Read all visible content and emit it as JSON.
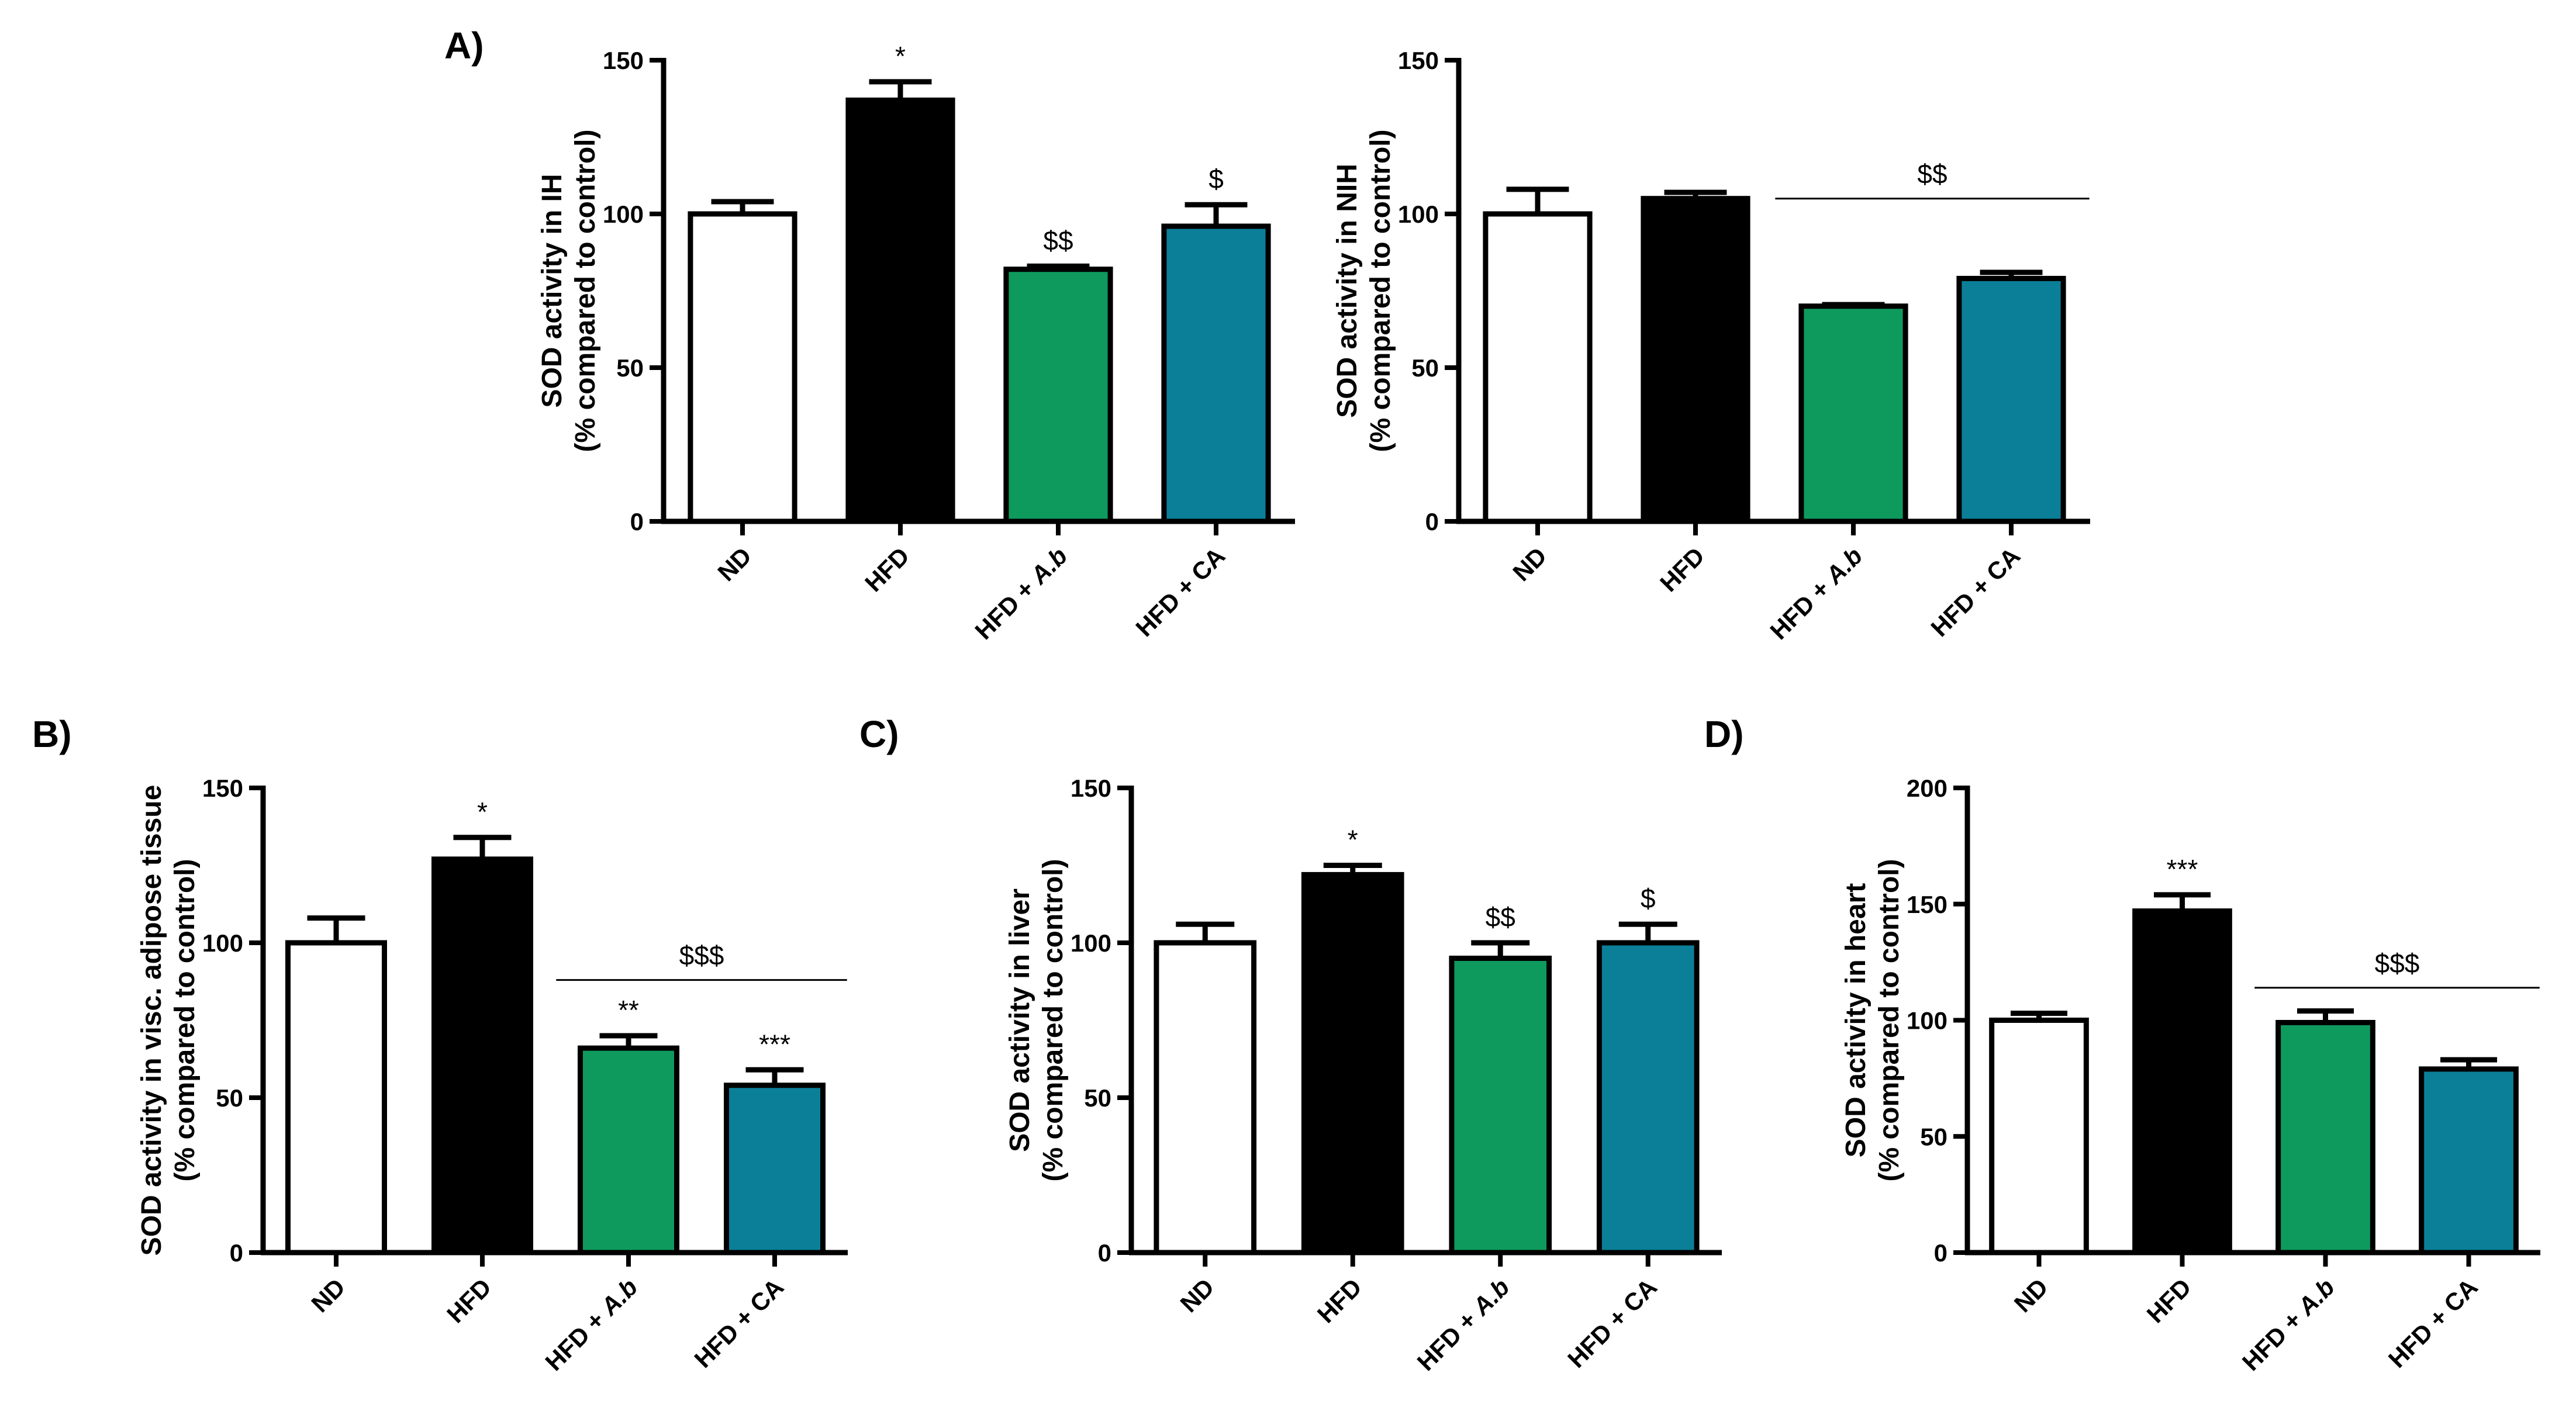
{
  "colors": {
    "ND": "#ffffff",
    "HFD": "#000000",
    "HFD + A.b": "#0e9a5d",
    "HFD + CA": "#0b7f98",
    "axis": "#000000"
  },
  "chart_data": [
    {
      "id": "A-IH",
      "panel_label": "A)",
      "type": "bar",
      "categories": [
        "ND",
        "HFD",
        "HFD + A.b",
        "HFD + CA"
      ],
      "values": [
        100,
        137,
        82,
        96
      ],
      "errors": [
        4,
        6,
        1,
        7
      ],
      "annotations": [
        "",
        "*",
        "$$",
        "$"
      ],
      "group_annotation": null,
      "ylabel_line1": "SOD activity in IH",
      "ylabel_line2": "(% compared to control)",
      "ylim": [
        0,
        150
      ],
      "yticks": [
        0,
        50,
        100,
        150
      ]
    },
    {
      "id": "A-NIH",
      "panel_label": "",
      "type": "bar",
      "categories": [
        "ND",
        "HFD",
        "HFD + A.b",
        "HFD + CA"
      ],
      "values": [
        100,
        105,
        70,
        79
      ],
      "errors": [
        8,
        2,
        0.5,
        2
      ],
      "annotations": [
        "",
        "",
        "",
        ""
      ],
      "group_annotation": {
        "text": "$$",
        "from": 2,
        "to": 3,
        "y": 105
      },
      "ylabel_line1": "SOD activity in NIH",
      "ylabel_line2": "(% compared to control)",
      "ylim": [
        0,
        150
      ],
      "yticks": [
        0,
        50,
        100,
        150
      ]
    },
    {
      "id": "B",
      "panel_label": "B)",
      "type": "bar",
      "categories": [
        "ND",
        "HFD",
        "HFD + A.b",
        "HFD + CA"
      ],
      "values": [
        100,
        127,
        66,
        54
      ],
      "errors": [
        8,
        7,
        4,
        5
      ],
      "annotations": [
        "",
        "*",
        "**",
        "***"
      ],
      "group_annotation": {
        "text": "$$$",
        "from": 2,
        "to": 3,
        "y": 88
      },
      "ylabel_line1": "SOD activity in visc. adipose tissue",
      "ylabel_line2": "(% compared to control)",
      "ylim": [
        0,
        150
      ],
      "yticks": [
        0,
        50,
        100,
        150
      ]
    },
    {
      "id": "C",
      "panel_label": "C)",
      "type": "bar",
      "categories": [
        "ND",
        "HFD",
        "HFD + A.b",
        "HFD + CA"
      ],
      "values": [
        100,
        122,
        95,
        100
      ],
      "errors": [
        6,
        3,
        5,
        6
      ],
      "annotations": [
        "",
        "*",
        "$$",
        "$"
      ],
      "group_annotation": null,
      "ylabel_line1": "SOD activity in liver",
      "ylabel_line2": "(% compared to control)",
      "ylim": [
        0,
        150
      ],
      "yticks": [
        0,
        50,
        100,
        150
      ]
    },
    {
      "id": "D",
      "panel_label": "D)",
      "type": "bar",
      "categories": [
        "ND",
        "HFD",
        "HFD + A.b",
        "HFD + CA"
      ],
      "values": [
        100,
        147,
        99,
        79
      ],
      "errors": [
        3,
        7,
        5,
        4
      ],
      "annotations": [
        "",
        "***",
        "",
        ""
      ],
      "group_annotation": {
        "text": "$$$",
        "from": 2,
        "to": 3,
        "y": 114
      },
      "ylabel_line1": "SOD activity in heart",
      "ylabel_line2": "(% compared to control)",
      "ylim": [
        0,
        200
      ],
      "yticks": [
        0,
        50,
        100,
        150,
        200
      ]
    }
  ]
}
